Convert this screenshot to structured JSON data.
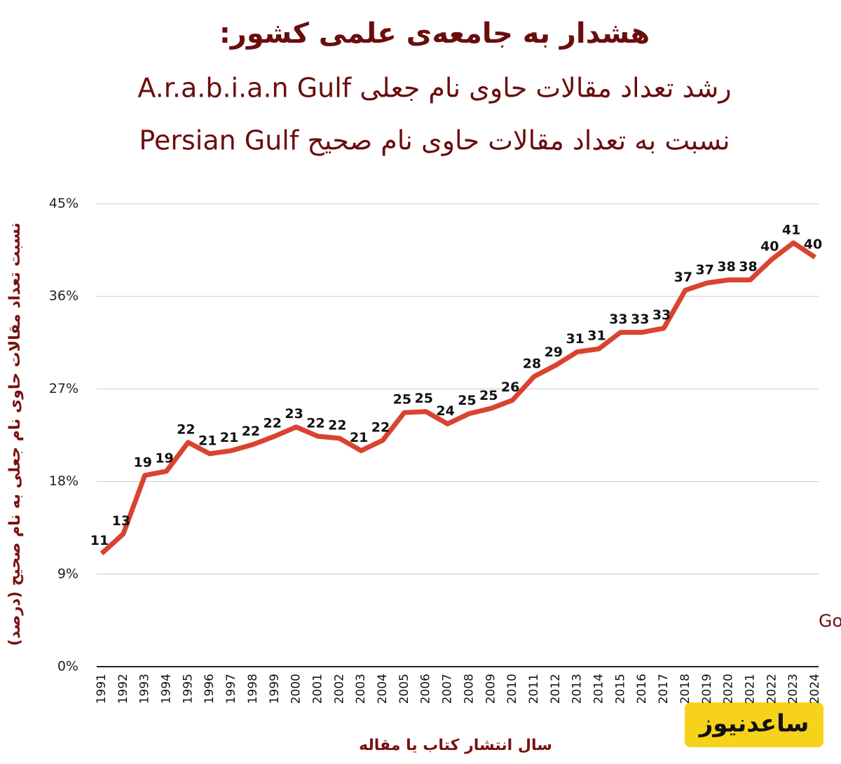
{
  "chart_data": {
    "type": "line",
    "title": "هشدار به جامعه‌ی علمی کشور:",
    "subtitle": [
      "رشد تعداد مقالات حاوی نام جعلی A.r.a.b.i.a.n Gulf",
      "نسبت به تعداد مقالات حاوی نام صحیح Persian Gulf"
    ],
    "y_label": "نسبت تعداد مقالات حاوی نام جعلی به نام صحیح (درصد)",
    "x_label": "سال انتشار کتاب یا مقاله",
    "source": "مرجع: Google Scholar",
    "logo": "ساعدنیوز",
    "categories": [
      "1991",
      "1992",
      "1993",
      "1994",
      "1995",
      "1996",
      "1997",
      "1998",
      "1999",
      "2000",
      "2001",
      "2002",
      "2003",
      "2004",
      "2005",
      "2006",
      "2007",
      "2008",
      "2009",
      "2010",
      "2011",
      "2012",
      "2013",
      "2014",
      "2015",
      "2016",
      "2017",
      "2018",
      "2019",
      "2020",
      "2021",
      "2022",
      "2023",
      "2024"
    ],
    "values": [
      11.0,
      12.9,
      18.6,
      19.0,
      21.8,
      20.7,
      21.0,
      21.6,
      22.4,
      23.3,
      22.4,
      22.2,
      21.0,
      22.0,
      24.7,
      24.8,
      23.6,
      24.6,
      25.1,
      25.9,
      28.2,
      29.3,
      30.6,
      30.9,
      32.5,
      32.5,
      32.9,
      36.6,
      37.3,
      37.6,
      37.6,
      39.6,
      41.2,
      39.8
    ],
    "value_labels": [
      "11",
      "13",
      "19",
      "19",
      "22",
      "21",
      "21",
      "22",
      "22",
      "23",
      "22",
      "22",
      "21",
      "22",
      "25",
      "25",
      "24",
      "25",
      "25",
      "26",
      "28",
      "29",
      "31",
      "31",
      "33",
      "33",
      "33",
      "37",
      "37",
      "38",
      "38",
      "40",
      "41",
      "40"
    ],
    "color": "#d9432f",
    "ylim": [
      0,
      45
    ],
    "yticks": [
      {
        "value": 0,
        "label": "0%"
      },
      {
        "value": 9,
        "label": "9%"
      },
      {
        "value": 18,
        "label": "18%"
      },
      {
        "value": 27,
        "label": "27%"
      },
      {
        "value": 36,
        "label": "36%"
      },
      {
        "value": 45,
        "label": "45%"
      }
    ],
    "grid": true
  }
}
